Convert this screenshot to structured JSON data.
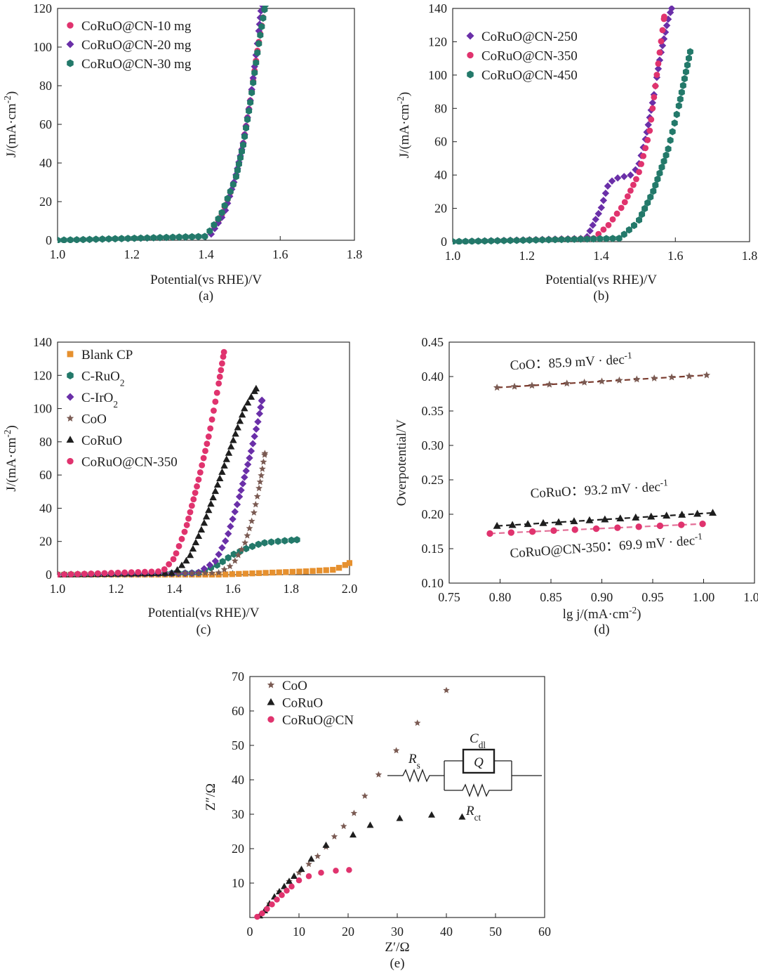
{
  "colors": {
    "pink": "#e0336e",
    "purple": "#6a2fa8",
    "teal": "#23796a",
    "orange": "#e6902e",
    "brown": "#7a5a52",
    "black": "#1e1e1e",
    "fit_brown": "#7a3b2e",
    "fit_pink": "#e36f97"
  },
  "chart_data": [
    {
      "id": "a",
      "type": "scatter",
      "panel_label": "(a)",
      "title": "",
      "xlabel": "Potential(vs RHE)/V",
      "ylabel": "J/(mA·cm⁻²)",
      "xlim": [
        1.0,
        1.8
      ],
      "ylim": [
        0,
        120
      ],
      "xticks": [
        1.0,
        1.2,
        1.4,
        1.6,
        1.8
      ],
      "xtick_labels": [
        "1.0",
        "1.2",
        "1.4",
        "1.6",
        "1.8"
      ],
      "yticks": [
        0,
        20,
        40,
        60,
        80,
        100,
        120
      ],
      "ytick_labels": [
        "0",
        "20",
        "40",
        "60",
        "80",
        "100",
        "120"
      ],
      "legend_position": "top-left",
      "series": [
        {
          "name": "CoRuO@CN-10 mg",
          "color": "pink",
          "marker": "circle",
          "x": [
            1.0,
            1.4,
            1.44,
            1.48,
            1.5,
            1.52,
            1.54,
            1.56
          ],
          "y": [
            0,
            2,
            12,
            32,
            50,
            73,
            100,
            122
          ]
        },
        {
          "name": "CoRuO@CN-20 mg",
          "color": "purple",
          "marker": "diamond",
          "x": [
            1.0,
            1.41,
            1.45,
            1.48,
            1.5,
            1.52,
            1.54,
            1.55
          ],
          "y": [
            0,
            2,
            14,
            33,
            50,
            73,
            104,
            122
          ]
        },
        {
          "name": "CoRuO@CN-30 mg",
          "color": "teal",
          "marker": "hexagon",
          "x": [
            1.0,
            1.4,
            1.44,
            1.48,
            1.5,
            1.52,
            1.54,
            1.56
          ],
          "y": [
            0,
            2,
            13,
            32,
            49,
            72,
            99,
            122
          ]
        }
      ]
    },
    {
      "id": "b",
      "type": "scatter",
      "panel_label": "(b)",
      "title": "",
      "xlabel": "Potential(vs RHE)/V",
      "ylabel": "J/(mA·cm⁻²)",
      "xlim": [
        1.0,
        1.8
      ],
      "ylim": [
        0,
        140
      ],
      "xticks": [
        1.0,
        1.2,
        1.4,
        1.6,
        1.8
      ],
      "xtick_labels": [
        "1.0",
        "1.2",
        "1.4",
        "1.6",
        "1.8"
      ],
      "yticks": [
        0,
        20,
        40,
        60,
        80,
        100,
        120,
        140
      ],
      "ytick_labels": [
        "0",
        "20",
        "40",
        "60",
        "80",
        "100",
        "120",
        "140"
      ],
      "legend_position": "top-left",
      "series": [
        {
          "name": "CoRuO@CN-250",
          "color": "purple",
          "marker": "diamond",
          "x": [
            1.0,
            1.36,
            1.4,
            1.42,
            1.44,
            1.48,
            1.5,
            1.52,
            1.54,
            1.56,
            1.58,
            1.59
          ],
          "y": [
            0,
            2,
            20,
            35,
            38,
            40,
            45,
            62,
            85,
            112,
            133,
            140
          ]
        },
        {
          "name": "CoRuO@CN-350",
          "color": "pink",
          "marker": "circle",
          "x": [
            1.0,
            1.38,
            1.42,
            1.46,
            1.5,
            1.53,
            1.55,
            1.57
          ],
          "y": [
            0,
            2,
            10,
            22,
            40,
            65,
            100,
            135
          ]
        },
        {
          "name": "CoRuO@CN-450",
          "color": "teal",
          "marker": "hexagon",
          "x": [
            1.0,
            1.45,
            1.5,
            1.54,
            1.58,
            1.61,
            1.64
          ],
          "y": [
            0,
            2,
            12,
            30,
            55,
            82,
            114
          ]
        }
      ]
    },
    {
      "id": "c",
      "type": "scatter",
      "panel_label": "(c)",
      "title": "",
      "xlabel": "Potential(vs RHE)/V",
      "ylabel": "J/(mA·cm⁻²)",
      "xlim": [
        1.0,
        2.0
      ],
      "ylim": [
        0,
        140
      ],
      "xticks": [
        1.0,
        1.2,
        1.4,
        1.6,
        1.8,
        2.0
      ],
      "xtick_labels": [
        "1.0",
        "1.2",
        "1.4",
        "1.6",
        "1.8",
        "2.0"
      ],
      "yticks": [
        0,
        20,
        40,
        60,
        80,
        100,
        120,
        140
      ],
      "ytick_labels": [
        "0",
        "20",
        "40",
        "60",
        "80",
        "100",
        "120",
        "140"
      ],
      "legend_position": "top-left",
      "series": [
        {
          "name": "Blank CP",
          "color": "orange",
          "marker": "square",
          "x": [
            1.0,
            1.55,
            1.7,
            1.85,
            1.95,
            2.0
          ],
          "y": [
            0,
            0,
            1,
            2,
            3,
            7
          ]
        },
        {
          "name": "C-RuO₂",
          "color": "teal",
          "marker": "hexagon",
          "x": [
            1.0,
            1.48,
            1.55,
            1.6,
            1.65,
            1.7,
            1.75,
            1.82
          ],
          "y": [
            0,
            1,
            6,
            12,
            16,
            19,
            20,
            21
          ]
        },
        {
          "name": "C-IrO₂",
          "color": "purple",
          "marker": "diamond",
          "x": [
            1.0,
            1.48,
            1.54,
            1.58,
            1.62,
            1.66,
            1.69,
            1.7
          ],
          "y": [
            0,
            1,
            8,
            22,
            45,
            72,
            95,
            105
          ]
        },
        {
          "name": "CoO",
          "color": "brown",
          "marker": "star",
          "x": [
            1.0,
            1.55,
            1.6,
            1.64,
            1.67,
            1.69,
            1.7,
            1.71
          ],
          "y": [
            0,
            1,
            6,
            18,
            35,
            52,
            62,
            73
          ]
        },
        {
          "name": "CoRuO",
          "color": "black",
          "marker": "triangle",
          "x": [
            1.0,
            1.4,
            1.45,
            1.5,
            1.55,
            1.6,
            1.64,
            1.68
          ],
          "y": [
            0,
            1,
            10,
            30,
            55,
            80,
            100,
            112
          ]
        },
        {
          "name": "CoRuO@CN-350",
          "color": "pink",
          "marker": "circle",
          "x": [
            1.0,
            1.36,
            1.4,
            1.44,
            1.48,
            1.52,
            1.55,
            1.57
          ],
          "y": [
            0,
            2,
            10,
            28,
            55,
            85,
            113,
            134
          ]
        }
      ]
    },
    {
      "id": "d",
      "type": "scatter",
      "panel_label": "(d)",
      "title": "",
      "xlabel": "lg j/(mA·cm⁻²)",
      "ylabel": "Overpotential/V",
      "xlim": [
        0.75,
        1.05
      ],
      "ylim": [
        0.1,
        0.45
      ],
      "xticks": [
        0.75,
        0.8,
        0.85,
        0.9,
        0.95,
        1.0,
        1.05
      ],
      "xtick_labels": [
        "0.75",
        "0.80",
        "0.85",
        "0.90",
        "0.95",
        "1.00",
        "1.05"
      ],
      "yticks": [
        0.1,
        0.15,
        0.2,
        0.25,
        0.3,
        0.35,
        0.4,
        0.45
      ],
      "ytick_labels": [
        "0.10",
        "0.15",
        "0.20",
        "0.25",
        "0.30",
        "0.35",
        "0.40",
        "0.45"
      ],
      "legend_position": "none",
      "series": [
        {
          "name": "CoO",
          "color": "brown",
          "marker": "star",
          "fit_color": "fit_brown",
          "x_start": 0.797,
          "x_end": 1.003,
          "y_start": 0.384,
          "y_end": 0.402,
          "n": 13
        },
        {
          "name": "CoRuO",
          "color": "black",
          "marker": "triangle",
          "fit_color": "black",
          "x_start": 0.797,
          "x_end": 1.009,
          "y_start": 0.183,
          "y_end": 0.202,
          "n": 15
        },
        {
          "name": "CoRuO@CN-350",
          "color": "pink",
          "marker": "circle",
          "fit_color": "fit_pink",
          "x_start": 0.79,
          "x_end": 0.999,
          "y_start": 0.172,
          "y_end": 0.186,
          "n": 11
        }
      ],
      "annotations": [
        {
          "name": "CoO",
          "label": "CoO：85.9 mV · dec⁻¹",
          "x": 0.81,
          "y": 0.41
        },
        {
          "name": "CoRuO",
          "label": "CoRuO：93.2 mV · dec⁻¹",
          "x": 0.83,
          "y": 0.224
        },
        {
          "name": "CoRuO@CN-350",
          "label": "CoRuO@CN-350：69.9 mV · dec⁻¹",
          "x": 0.81,
          "y": 0.137
        }
      ]
    },
    {
      "id": "e",
      "type": "scatter",
      "panel_label": "(e)",
      "title": "",
      "xlabel": "Z′/Ω",
      "ylabel": "Z″/Ω",
      "xlim": [
        0,
        60
      ],
      "ylim": [
        0,
        70
      ],
      "xticks": [
        0,
        10,
        20,
        30,
        40,
        50,
        60
      ],
      "xtick_labels": [
        "0",
        "10",
        "20",
        "30",
        "40",
        "50",
        "60"
      ],
      "yticks": [
        10,
        20,
        30,
        40,
        50,
        60,
        70
      ],
      "ytick_labels": [
        "10",
        "20",
        "30",
        "40",
        "50",
        "60",
        "70"
      ],
      "legend_position": "top-left",
      "series": [
        {
          "name": "CoO",
          "color": "brown",
          "marker": "star",
          "x": [
            2,
            4,
            6,
            8,
            10,
            12,
            13.8,
            15.5,
            17.2,
            19.1,
            21.2,
            23.4,
            26.2,
            29.8,
            34.1,
            40.0
          ],
          "y": [
            0.5,
            4,
            7.5,
            10.5,
            13,
            15.5,
            17.8,
            20.5,
            23.5,
            26.5,
            30.3,
            35.3,
            41.5,
            48.5,
            56.5,
            66.0
          ]
        },
        {
          "name": "CoRuO",
          "color": "black",
          "marker": "triangle",
          "x": [
            2,
            3,
            4,
            5,
            6,
            7,
            8,
            9,
            10.5,
            12.5,
            15.5,
            21,
            24.5,
            30.5,
            37,
            43.2
          ],
          "y": [
            0.5,
            2,
            4,
            6,
            7.5,
            9,
            10.5,
            12,
            14,
            17,
            21,
            24,
            26.8,
            28.8,
            29.8,
            29.2
          ]
        },
        {
          "name": "CoRuO@CN",
          "color": "pink",
          "marker": "circle",
          "x": [
            1.5,
            2.5,
            3.5,
            4.5,
            5.5,
            6.5,
            7.5,
            8.5,
            10,
            12,
            14.5,
            17.5,
            20.2
          ],
          "y": [
            0.2,
            1.2,
            2.5,
            3.8,
            5.2,
            6.5,
            7.8,
            9,
            10.8,
            12,
            13,
            13.6,
            13.8
          ]
        }
      ],
      "inset_circuit_labels": {
        "resistor_s": "R",
        "resistor_s_sub": "s",
        "cpe": "Q",
        "capacitance": "C",
        "capacitance_sub": "dl",
        "resistor_ct": "R",
        "resistor_ct_sub": "ct"
      }
    }
  ]
}
